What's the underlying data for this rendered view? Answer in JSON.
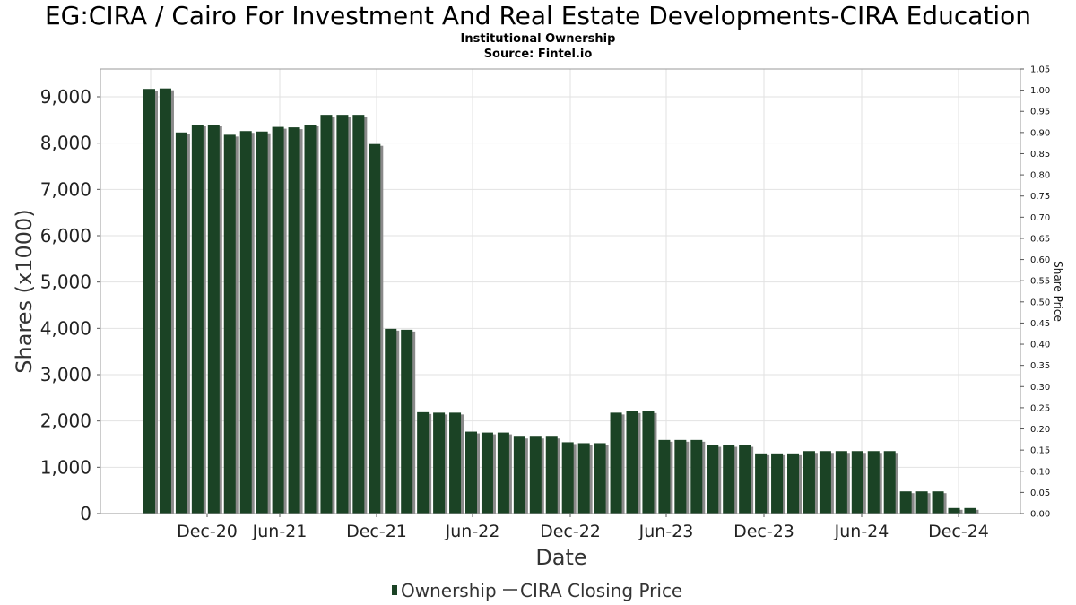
{
  "title": "EG:CIRA / Cairo For Investment And Real Estate Developments-CIRA Education",
  "subtitle_1": "Institutional Ownership",
  "subtitle_2": "Source: Fintel.io",
  "legend": {
    "ownership": "Ownership",
    "price": "CIRA Closing Price"
  },
  "colors": {
    "bar": "#1b4325",
    "bar_shadow": "#8a8a8a",
    "grid": "#e2e2e2"
  },
  "chart_data": {
    "type": "bar",
    "xlabel": "Date",
    "ylabel": "Shares (x1000)",
    "y2label": "Share Price",
    "ylim": [
      0,
      9600
    ],
    "y2lim": [
      0,
      1.05
    ],
    "yticks": [
      0,
      1000,
      2000,
      3000,
      4000,
      5000,
      6000,
      7000,
      8000,
      9000
    ],
    "ytick_labels": [
      "0",
      "1,000",
      "2,000",
      "3,000",
      "4,000",
      "5,000",
      "6,000",
      "7,000",
      "8,000",
      "9,000"
    ],
    "y2tick_labels": [
      "0.00",
      "0.05",
      "0.10",
      "0.15",
      "0.20",
      "0.25",
      "0.30",
      "0.35",
      "0.40",
      "0.45",
      "0.50",
      "0.55",
      "0.60",
      "0.65",
      "0.70",
      "0.75",
      "0.80",
      "0.85",
      "0.90",
      "0.95",
      "1.00",
      "1.05"
    ],
    "xtick_labels": [
      "Dec-20",
      "Jun-21",
      "Dec-21",
      "Jun-22",
      "Dec-22",
      "Jun-23",
      "Dec-23",
      "Jun-24",
      "Dec-24"
    ],
    "grid": true,
    "legend_position": "bottom",
    "series": [
      {
        "name": "Ownership",
        "values": [
          9170,
          9180,
          8230,
          8400,
          8400,
          8180,
          8260,
          8250,
          8350,
          8340,
          8400,
          8610,
          8610,
          8610,
          7980,
          3990,
          3970,
          2190,
          2180,
          2180,
          1770,
          1750,
          1750,
          1660,
          1660,
          1660,
          1540,
          1520,
          1520,
          2180,
          2210,
          2210,
          1590,
          1590,
          1590,
          1480,
          1480,
          1480,
          1300,
          1300,
          1300,
          1350,
          1350,
          1350,
          1350,
          1350,
          1350,
          480,
          480,
          480,
          120,
          120
        ]
      },
      {
        "name": "CIRA Closing Price",
        "values": []
      }
    ]
  }
}
